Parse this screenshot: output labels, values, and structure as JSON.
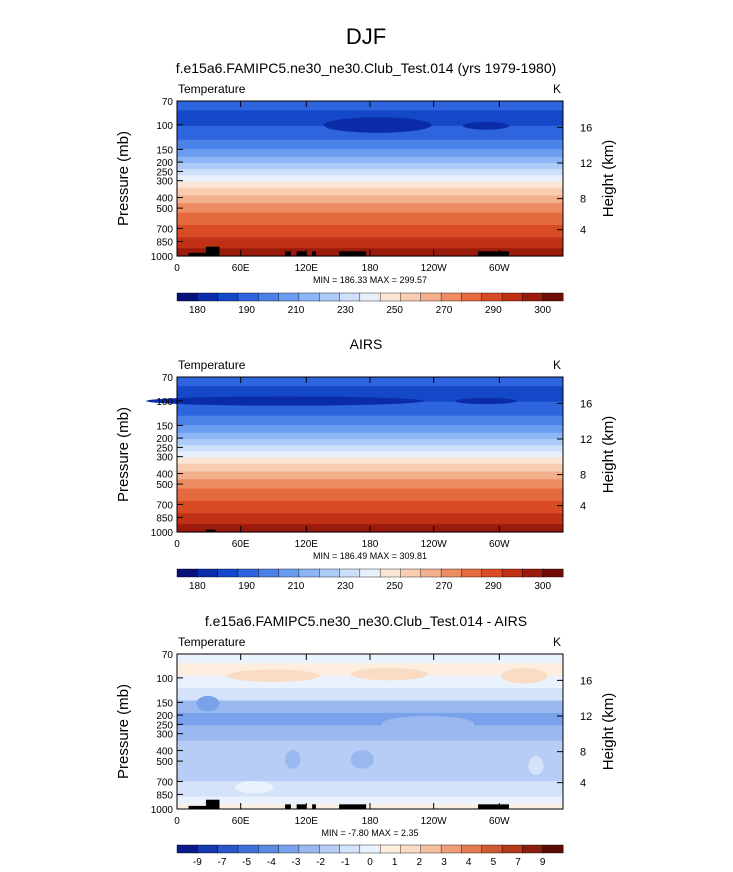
{
  "figure": {
    "title": "DJF"
  },
  "colors": {
    "temp_palette": [
      "#08107a",
      "#0a2ca8",
      "#1548c8",
      "#2e64dd",
      "#4a82e8",
      "#6a9cf0",
      "#8cb6f5",
      "#adcbf8",
      "#cfe0fb",
      "#e8f0fc",
      "#fbe6d5",
      "#f8cdb0",
      "#f4b08c",
      "#ee8c63",
      "#e66a40",
      "#d84b24",
      "#c03014",
      "#9a1a0c",
      "#6e0c06"
    ],
    "diff_palette": [
      "#0a1a8a",
      "#1838b0",
      "#2a56c8",
      "#3f70d8",
      "#5a8ae2",
      "#7aa2ea",
      "#9ab8f0",
      "#b8cdf5",
      "#d4e2fa",
      "#eaf2fd",
      "#fdeee0",
      "#fadcc4",
      "#f5c0a0",
      "#ee9e78",
      "#e27a52",
      "#d05a32",
      "#b43a1c",
      "#8c2010",
      "#5a0c06"
    ],
    "land": "#000000"
  },
  "chart_data": [
    {
      "type": "heatmap",
      "title": "f.e15a6.FAMIPC5.ne30_ne30.Club_Test.014 (yrs 1979-1980)",
      "variable": "Temperature",
      "units": "K",
      "ylabel": "Pressure (mb)",
      "ylabel_right": "Height (km)",
      "pressure_ticks": [
        "70",
        "100",
        "150",
        "200",
        "250",
        "300",
        "400",
        "500",
        "700",
        "850",
        "1000"
      ],
      "height_ticks": [
        "16",
        "12",
        "8",
        "4"
      ],
      "lon_ticks": [
        "0",
        "60E",
        "120E",
        "180",
        "120W",
        "60W"
      ],
      "stats": "MIN = 186.33  MAX = 299.57",
      "colorbar_labels": [
        "180",
        "190",
        "210",
        "230",
        "250",
        "270",
        "290",
        "300"
      ]
    },
    {
      "type": "heatmap",
      "title": "AIRS",
      "variable": "Temperature",
      "units": "K",
      "ylabel": "Pressure (mb)",
      "ylabel_right": "Height (km)",
      "pressure_ticks": [
        "70",
        "100",
        "150",
        "200",
        "250",
        "300",
        "400",
        "500",
        "700",
        "850",
        "1000"
      ],
      "height_ticks": [
        "16",
        "12",
        "8",
        "4"
      ],
      "lon_ticks": [
        "0",
        "60E",
        "120E",
        "180",
        "120W",
        "60W"
      ],
      "stats": "MIN = 186.49  MAX = 309.81",
      "colorbar_labels": [
        "180",
        "190",
        "210",
        "230",
        "250",
        "270",
        "290",
        "300"
      ]
    },
    {
      "type": "heatmap",
      "title": "f.e15a6.FAMIPC5.ne30_ne30.Club_Test.014 - AIRS",
      "variable": "Temperature",
      "units": "K",
      "ylabel": "Pressure (mb)",
      "ylabel_right": "Height (km)",
      "pressure_ticks": [
        "70",
        "100",
        "150",
        "200",
        "250",
        "300",
        "400",
        "500",
        "700",
        "850",
        "1000"
      ],
      "height_ticks": [
        "16",
        "12",
        "8",
        "4"
      ],
      "lon_ticks": [
        "0",
        "60E",
        "120E",
        "180",
        "120W",
        "60W"
      ],
      "stats": "MIN = -7.80  MAX =  2.35",
      "colorbar_labels": [
        "-9",
        "-7",
        "-5",
        "-4",
        "-3",
        "-2",
        "-1",
        "0",
        "1",
        "2",
        "3",
        "4",
        "5",
        "7",
        "9"
      ]
    }
  ]
}
